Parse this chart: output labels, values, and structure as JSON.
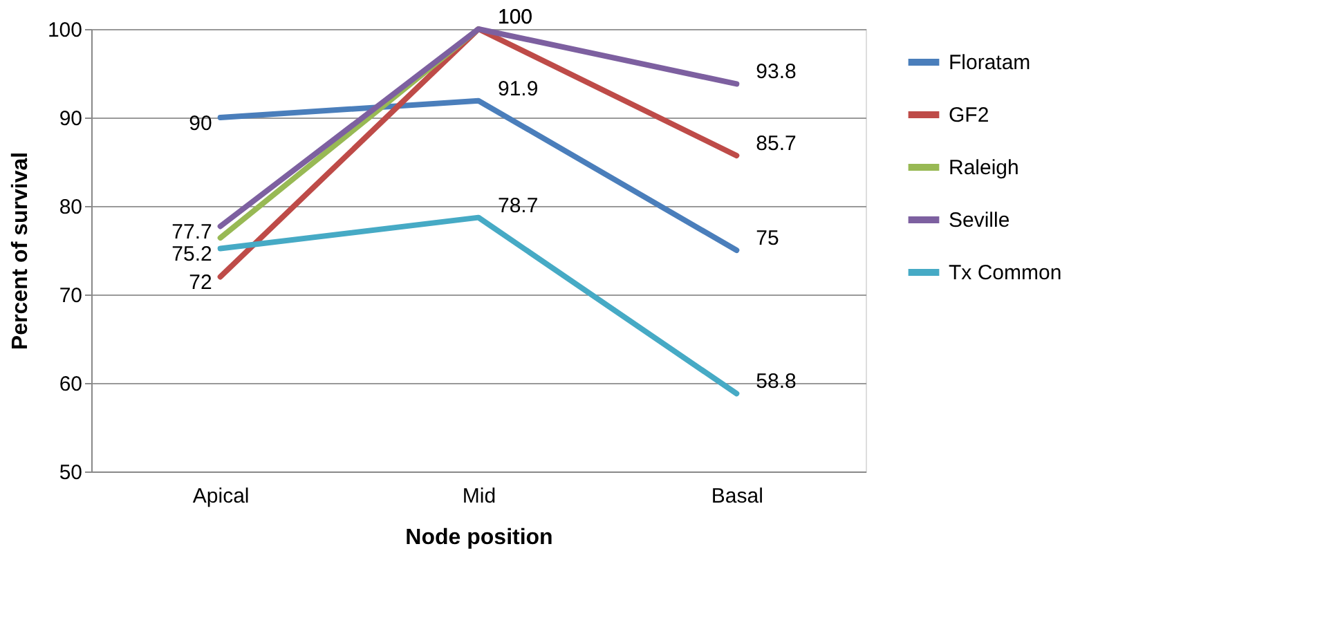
{
  "chart_data": {
    "type": "line",
    "xlabel": "Node position",
    "ylabel": "Percent of survival",
    "categories": [
      "Apical",
      "Mid",
      "Basal"
    ],
    "series": [
      {
        "name": "Floratam",
        "color": "#4a7ebb",
        "values": [
          90,
          91.9,
          75
        ],
        "value_labels": [
          "90",
          "91.9",
          "75"
        ]
      },
      {
        "name": "GF2",
        "color": "#be4b48",
        "values": [
          72,
          100,
          85.7
        ],
        "value_labels": [
          "72",
          "100",
          "85.7"
        ]
      },
      {
        "name": "Raleigh",
        "color": "#98b954",
        "values": [
          76.4,
          100,
          null
        ],
        "value_labels": [
          null,
          null,
          null
        ]
      },
      {
        "name": "Seville",
        "color": "#7d60a0",
        "values": [
          77.7,
          100,
          93.8
        ],
        "value_labels": [
          "77.7",
          "100",
          "93.8"
        ]
      },
      {
        "name": "Tx Common",
        "color": "#46aac5",
        "values": [
          75.2,
          78.7,
          58.8
        ],
        "value_labels": [
          "75.2",
          "78.7",
          "58.8"
        ]
      }
    ],
    "ylim": [
      50,
      100
    ],
    "yticks": [
      50,
      60,
      70,
      80,
      90,
      100
    ],
    "grid": "y",
    "legend": "right",
    "marker": "none",
    "line_style": "solid"
  }
}
